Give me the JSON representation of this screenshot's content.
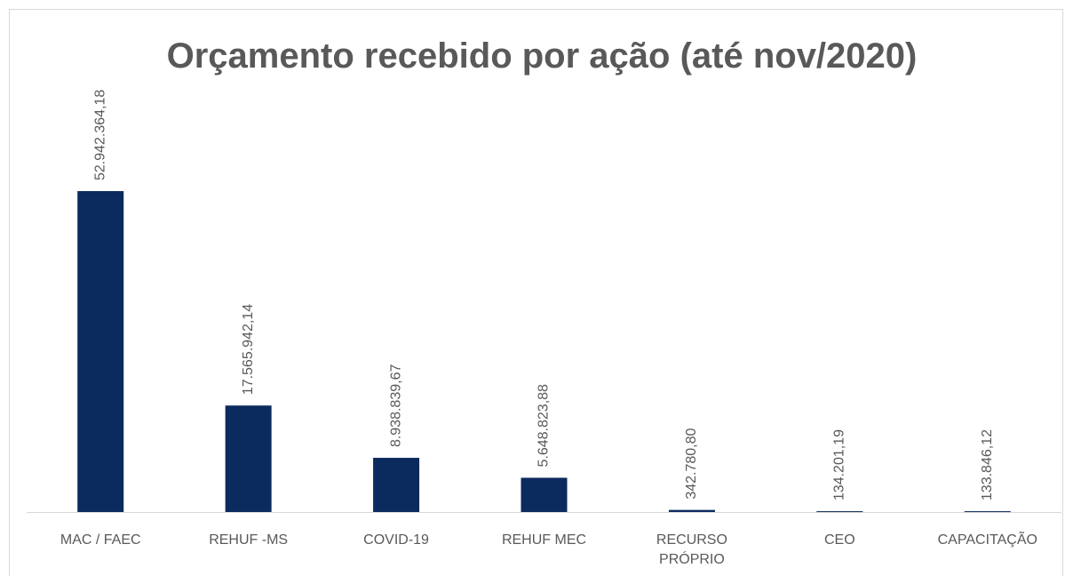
{
  "chart_data": {
    "type": "bar",
    "title": "Orçamento recebido por ação (até nov/2020)",
    "categories": [
      "MAC / FAEC",
      "REHUF -MS",
      "COVID-19",
      "REHUF MEC",
      "RECURSO PRÓPRIO",
      "CEO",
      "CAPACITAÇÃO"
    ],
    "values": [
      52942364.18,
      17565942.14,
      8938839.67,
      5648823.88,
      342780.8,
      134201.19,
      133846.12
    ],
    "value_labels": [
      "52.942.364,18",
      "17.565.942,14",
      "8.938.839,67",
      "5.648.823,88",
      "342.780,80",
      "134.201,19",
      "133.846,12"
    ],
    "color": "#0b2a5e"
  }
}
